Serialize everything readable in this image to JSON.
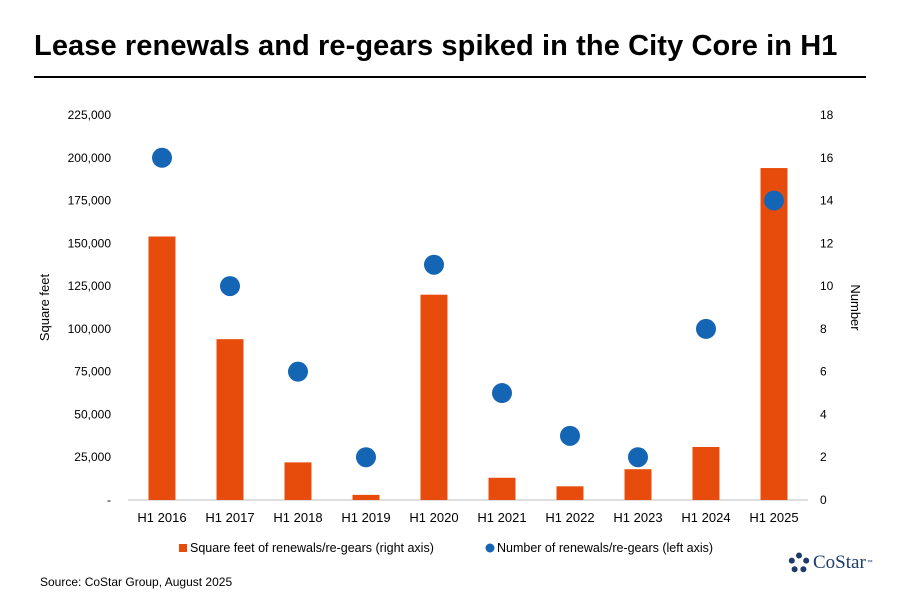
{
  "title": "Lease renewals and re-gears spiked in the City Core in H1",
  "source": "Source: CoStar Group, August 2025",
  "brand": {
    "name": "CoStar",
    "trademark": "™",
    "color": "#1d3a6b"
  },
  "chart_data": {
    "type": "bar",
    "categories": [
      "H1 2016",
      "H1 2017",
      "H1 2018",
      "H1 2019",
      "H1 2020",
      "H1 2021",
      "H1 2022",
      "H1 2023",
      "H1 2024",
      "H1 2025"
    ],
    "series": [
      {
        "name": "Square feet of renewals/re-gears (right axis)",
        "type": "bar",
        "axis": "left",
        "color": "#e84c0c",
        "values": [
          154000,
          94000,
          22000,
          3000,
          120000,
          13000,
          8000,
          18000,
          31000,
          194000
        ]
      },
      {
        "name": "Number of renewals/re-gears (left axis)",
        "type": "scatter",
        "axis": "right",
        "color": "#1565b5",
        "values": [
          16,
          10,
          6,
          2,
          11,
          5,
          3,
          2,
          8,
          14
        ]
      }
    ],
    "y_left": {
      "label": "Square feet",
      "ylim": [
        0,
        225000
      ],
      "ticks": [
        0,
        25000,
        50000,
        75000,
        100000,
        125000,
        150000,
        175000,
        200000,
        225000
      ],
      "tick_labels": [
        "-",
        "25,000",
        "50,000",
        "75,000",
        "100,000",
        "125,000",
        "150,000",
        "175,000",
        "200,000",
        "225,000"
      ]
    },
    "y_right": {
      "label": "Number",
      "ylim": [
        0,
        18
      ],
      "ticks": [
        0,
        2,
        4,
        6,
        8,
        10,
        12,
        14,
        16,
        18
      ],
      "tick_labels": [
        "0",
        "2",
        "4",
        "6",
        "8",
        "10",
        "12",
        "14",
        "16",
        "18"
      ]
    },
    "grid": false,
    "legend_position": "bottom"
  }
}
